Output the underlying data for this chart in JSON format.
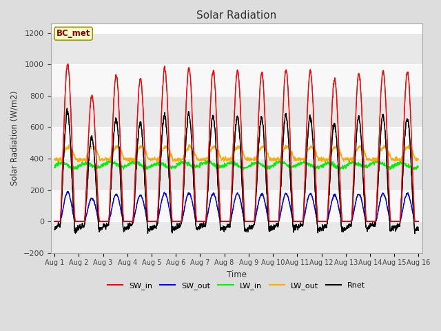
{
  "title": "Solar Radiation",
  "ylabel": "Solar Radiation (W/m2)",
  "xlabel": "Time",
  "ylim": [
    -200,
    1260
  ],
  "yticks": [
    -200,
    0,
    200,
    400,
    600,
    800,
    1000,
    1200
  ],
  "start_day": 1,
  "end_day": 16,
  "xtick_labels": [
    "Aug 1",
    "Aug 2",
    "Aug 3",
    "Aug 4",
    "Aug 5",
    "Aug 6",
    "Aug 7",
    "Aug 8",
    "Aug 9",
    "Aug 10",
    "Aug 11",
    "Aug 12",
    "Aug 13",
    "Aug 14",
    "Aug 15",
    "Aug 16"
  ],
  "colors": {
    "SW_in": "#ff0000",
    "SW_out": "#0000ff",
    "LW_in": "#00ee00",
    "LW_out": "#ffaa00",
    "Rnet": "#000000"
  },
  "background_color": "#dddddd",
  "plot_bg_color": "#ffffff",
  "label_box_text": "BC_met",
  "label_box_facecolor": "#ffffcc",
  "label_box_edgecolor": "#999900",
  "label_box_textcolor": "#880000",
  "grid_color": "#cccccc",
  "hours_per_day": 24,
  "total_days": 15,
  "dt_hours": 0.25
}
